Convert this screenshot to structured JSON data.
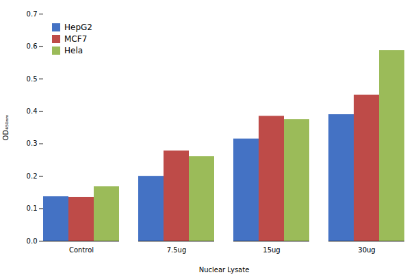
{
  "chart_data": {
    "type": "bar",
    "categories": [
      "Control",
      "7.5ug",
      "15ug",
      "30ug"
    ],
    "series": [
      {
        "name": "HepG2",
        "color": "#4472C4",
        "values": [
          0.137,
          0.2,
          0.315,
          0.39
        ]
      },
      {
        "name": "MCF7",
        "color": "#BE4B48",
        "values": [
          0.135,
          0.278,
          0.385,
          0.45
        ]
      },
      {
        "name": "Hela",
        "color": "#9BBB59",
        "values": [
          0.168,
          0.261,
          0.375,
          0.588
        ]
      }
    ],
    "xlabel": "Nuclear Lysate",
    "ylabel": "OD₄₅₀ₙₘ",
    "ylim": [
      0,
      0.7
    ],
    "yticks": [
      {
        "value": 0,
        "label": "0.0"
      },
      0.1,
      0.2,
      0.3,
      0.4,
      0.5,
      0.6,
      0.7
    ],
    "grid": false,
    "legend": "upper left"
  }
}
